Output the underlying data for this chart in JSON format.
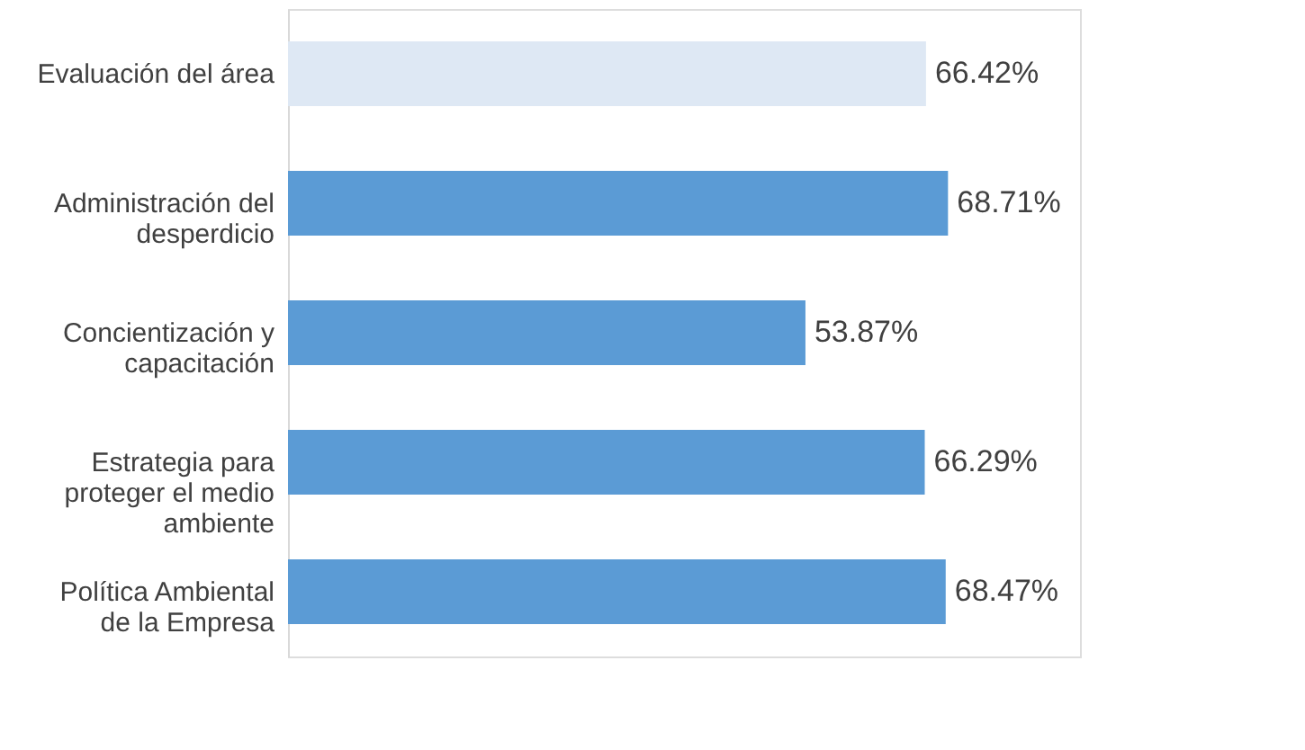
{
  "chart_data": {
    "type": "bar",
    "orientation": "horizontal",
    "data_labels": true,
    "categories": [
      "Evaluación del área",
      "Administración del desperdicio",
      "Concientización y capacitación",
      "Estrategia para proteger el medio ambiente",
      "Política Ambiental de la Empresa"
    ],
    "values": [
      66.42,
      68.71,
      53.87,
      66.29,
      68.47
    ],
    "colors": [
      "#dee8f4",
      "#5b9bd5",
      "#5b9bd5",
      "#5b9bd5",
      "#5b9bd5"
    ],
    "value_labels": [
      "66.42%",
      "68.71%",
      "53.87%",
      "66.29%",
      "68.47%"
    ]
  }
}
